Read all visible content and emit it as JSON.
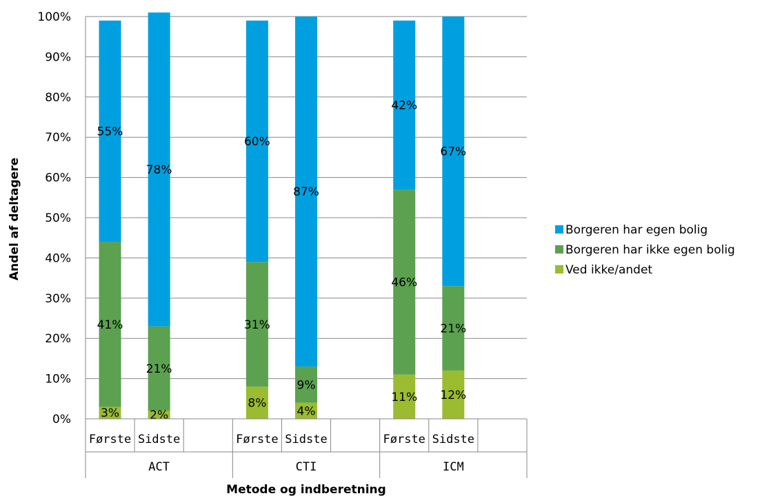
{
  "chart_data": {
    "type": "bar",
    "stacked": true,
    "percent": true,
    "xlabel": "Metode og indberetning",
    "ylabel": "Andel af deltagere",
    "ylim": [
      0,
      100
    ],
    "yticks": [
      "0%",
      "10%",
      "20%",
      "30%",
      "40%",
      "50%",
      "60%",
      "70%",
      "80%",
      "90%",
      "100%"
    ],
    "grid": true,
    "legend_position": "right",
    "groups": [
      {
        "label": "ACT",
        "categories": [
          "Første",
          "Sidste"
        ]
      },
      {
        "label": "CTI",
        "categories": [
          "Første",
          "Sidste"
        ]
      },
      {
        "label": "ICM",
        "categories": [
          "Første",
          "Sidste"
        ]
      }
    ],
    "series": [
      {
        "name": "Ved ikke/andet",
        "color": "#9BBB30",
        "values": [
          3,
          2,
          8,
          4,
          11,
          12
        ],
        "labels": [
          "3%",
          "2%",
          "8%",
          "4%",
          "11%",
          "12%"
        ]
      },
      {
        "name": "Borgeren har ikke egen bolig",
        "color": "#5BA150",
        "values": [
          41,
          21,
          31,
          9,
          46,
          21
        ],
        "labels": [
          "41%",
          "21%",
          "31%",
          "9%",
          "46%",
          "21%"
        ]
      },
      {
        "name": "Borgeren har egen bolig",
        "color": "#00A0E0",
        "values": [
          55,
          78,
          60,
          87,
          42,
          67
        ],
        "labels": [
          "55%",
          "78%",
          "60%",
          "87%",
          "42%",
          "67%"
        ]
      }
    ],
    "legend_order": [
      "Borgeren har egen bolig",
      "Borgeren har ikke egen bolig",
      "Ved ikke/andet"
    ]
  }
}
